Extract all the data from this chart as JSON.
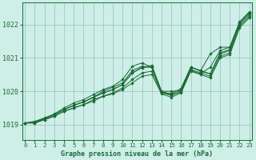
{
  "bg_color": "#ceeee8",
  "grid_color": "#9dc9bc",
  "line_color": "#1a6b33",
  "marker_color": "#1a6b33",
  "title": "Graphe pression niveau de la mer (hPa)",
  "ylim": [
    1018.55,
    1022.65
  ],
  "yticks": [
    1019,
    1020,
    1021,
    1022
  ],
  "xlim": [
    -0.3,
    23.3
  ],
  "xticks": [
    0,
    1,
    2,
    3,
    4,
    5,
    6,
    7,
    8,
    9,
    10,
    11,
    12,
    13,
    14,
    15,
    16,
    17,
    18,
    19,
    20,
    21,
    22,
    23
  ],
  "series": [
    [
      1019.05,
      1019.05,
      1019.15,
      1019.25,
      1019.4,
      1019.5,
      1019.6,
      1019.7,
      1019.85,
      1019.92,
      1020.05,
      1020.25,
      1020.45,
      1020.5,
      1019.92,
      1019.82,
      1019.95,
      1020.6,
      1020.5,
      1020.4,
      1021.0,
      1021.1,
      1021.9,
      1022.2
    ],
    [
      1019.05,
      1019.05,
      1019.15,
      1019.25,
      1019.4,
      1019.5,
      1019.6,
      1019.75,
      1019.85,
      1019.95,
      1020.1,
      1020.35,
      1020.55,
      1020.6,
      1019.95,
      1019.88,
      1020.02,
      1020.65,
      1020.55,
      1020.45,
      1021.05,
      1021.15,
      1021.95,
      1022.25
    ],
    [
      1019.05,
      1019.07,
      1019.18,
      1019.3,
      1019.45,
      1019.58,
      1019.68,
      1019.82,
      1019.95,
      1020.05,
      1020.2,
      1020.55,
      1020.72,
      1020.72,
      1019.98,
      1019.92,
      1020.08,
      1020.72,
      1020.6,
      1020.52,
      1021.12,
      1021.22,
      1022.0,
      1022.3
    ],
    [
      1019.05,
      1019.07,
      1019.18,
      1019.3,
      1019.45,
      1019.58,
      1019.68,
      1019.82,
      1019.95,
      1020.05,
      1020.2,
      1020.55,
      1020.7,
      1020.78,
      1020.0,
      1020.0,
      1020.02,
      1020.72,
      1020.62,
      1020.52,
      1021.15,
      1021.25,
      1022.05,
      1022.35
    ],
    [
      1019.05,
      1019.07,
      1019.18,
      1019.3,
      1019.45,
      1019.58,
      1019.68,
      1019.82,
      1020.0,
      1020.12,
      1020.25,
      1020.62,
      1020.75,
      1020.72,
      1019.98,
      1019.88,
      1019.98,
      1020.62,
      1020.52,
      1020.72,
      1021.22,
      1021.32,
      1022.05,
      1022.35
    ],
    [
      1019.05,
      1019.1,
      1019.2,
      1019.32,
      1019.5,
      1019.65,
      1019.75,
      1019.9,
      1020.05,
      1020.15,
      1020.35,
      1020.75,
      1020.85,
      1020.72,
      1019.98,
      1019.92,
      1020.08,
      1020.72,
      1020.62,
      1021.12,
      1021.32,
      1021.32,
      1022.08,
      1022.38
    ]
  ]
}
